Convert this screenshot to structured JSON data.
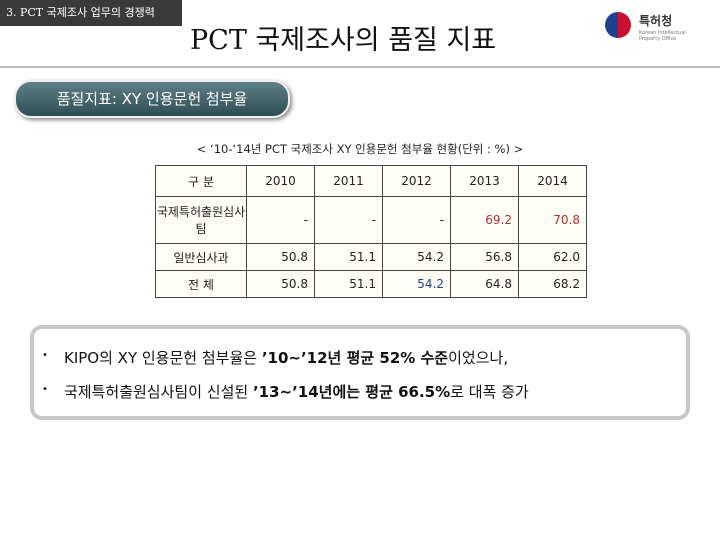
{
  "header": {
    "section": "3. PCT 국제조사 업무의 경쟁력",
    "title": "PCT 국제조사의 품질 지표",
    "logo": {
      "name": "특허청",
      "subtitle": "Korean Intellectual Property Office"
    }
  },
  "badge": "품질지표: XY 인용문헌 첨부율",
  "table": {
    "caption": "< ‘10-‘14년 PCT 국제조사 XY 인용문헌 첨부율 현황(단위 : %) >",
    "columns": [
      "구 분",
      "2010",
      "2011",
      "2012",
      "2013",
      "2014"
    ],
    "rows": [
      [
        "국제특허출원심사팀",
        "-",
        "-",
        "-",
        "69.2",
        "70.8"
      ],
      [
        "일반심사과",
        "50.8",
        "51.1",
        "54.2",
        "56.8",
        "62.0"
      ],
      [
        "전 체",
        "50.8",
        "51.1",
        "54.2",
        "64.8",
        "68.2"
      ]
    ]
  },
  "bullets": [
    [
      "KIPO의 XY 인용문헌 첨부율은 ",
      "’10~’12년 평균 52% 수준",
      "이었으나,"
    ],
    [
      "국제특허출원심사팀이 신설된 ",
      "’13~’14년에는 평균 66.5%",
      "로 대폭 증가"
    ]
  ]
}
